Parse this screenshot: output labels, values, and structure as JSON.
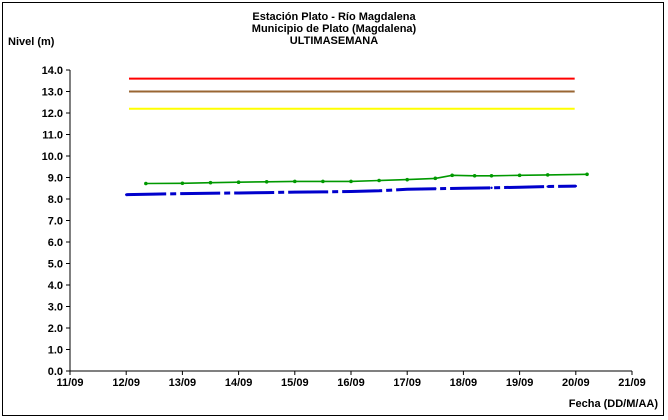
{
  "chart_data": {
    "type": "line",
    "title": [
      "Estación Plato - Río Magdalena",
      "Municipio de Plato (Magdalena)",
      "ULTIMASEMANA"
    ],
    "ylabel": "Nivel (m)",
    "xlabel": "Fecha (DD/M/AA)",
    "ylim": [
      0.0,
      14.0
    ],
    "yticks": [
      "0.0",
      "1.0",
      "2.0",
      "3.0",
      "4.0",
      "5.0",
      "6.0",
      "7.0",
      "8.0",
      "9.0",
      "10.0",
      "11.0",
      "12.0",
      "13.0",
      "14.0"
    ],
    "xlim": [
      0,
      10
    ],
    "xticks": [
      "11/09",
      "12/09",
      "13/09",
      "14/09",
      "15/09",
      "16/09",
      "17/09",
      "18/09",
      "19/09",
      "20/09",
      "21/09"
    ],
    "grid": false,
    "thresholds": [
      {
        "value": 13.6,
        "x_start": 1.05,
        "x_end": 8.98,
        "color": "#ff0000"
      },
      {
        "value": 13.0,
        "x_start": 1.05,
        "x_end": 8.98,
        "color": "#996633"
      },
      {
        "value": 12.2,
        "x_start": 1.05,
        "x_end": 8.98,
        "color": "#ffff00"
      }
    ],
    "series": [
      {
        "color": "#0000cc",
        "style": "dash-dot-thick",
        "x": [
          1.0,
          1.5,
          2.0,
          2.5,
          3.0,
          3.5,
          4.0,
          4.5,
          5.0,
          5.5,
          6.0,
          6.5,
          7.0,
          7.5,
          8.0,
          8.5,
          9.0
        ],
        "y": [
          8.2,
          8.23,
          8.25,
          8.27,
          8.28,
          8.3,
          8.32,
          8.33,
          8.35,
          8.38,
          8.45,
          8.48,
          8.5,
          8.52,
          8.55,
          8.58,
          8.6
        ]
      },
      {
        "color": "#009900",
        "style": "solid-markers",
        "x": [
          1.35,
          2.0,
          2.5,
          3.0,
          3.5,
          4.0,
          4.5,
          5.0,
          5.5,
          6.0,
          6.5,
          6.8,
          7.2,
          7.5,
          8.0,
          8.5,
          9.2
        ],
        "y": [
          8.72,
          8.73,
          8.76,
          8.78,
          8.8,
          8.82,
          8.82,
          8.82,
          8.86,
          8.9,
          8.96,
          9.1,
          9.08,
          9.08,
          9.1,
          9.12,
          9.15
        ]
      }
    ]
  }
}
